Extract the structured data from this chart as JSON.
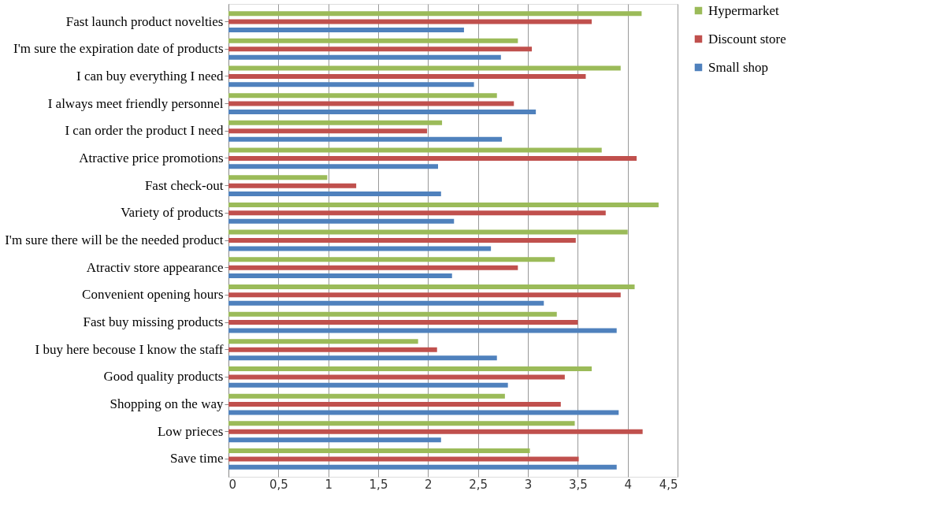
{
  "chart_data": {
    "type": "bar",
    "orientation": "horizontal",
    "categories": [
      "Fast launch product novelties",
      "I'm sure the expiration date of products",
      "I can buy everything I need",
      "I always meet friendly personnel",
      "I can order the product I need",
      "Atractive price promotions",
      "Fast check-out",
      "Variety of products",
      "I'm sure there will be the needed product",
      "Atractiv store appearance",
      "Convenient opening hours",
      "Fast buy missing products",
      "I buy here becouse I know the staff",
      "Good quality products",
      "Shopping on the way",
      "Low prieces",
      "Save time"
    ],
    "series": [
      {
        "name": "Hypermarket",
        "color": "#9bbb59",
        "values": [
          4.14,
          2.9,
          3.93,
          2.69,
          2.14,
          3.74,
          0.99,
          4.31,
          4.0,
          3.27,
          4.07,
          3.29,
          1.9,
          3.64,
          2.77,
          3.47,
          3.02
        ]
      },
      {
        "name": "Discount store",
        "color": "#c0504d",
        "values": [
          3.64,
          3.04,
          3.58,
          2.86,
          1.99,
          4.09,
          1.28,
          3.78,
          3.48,
          2.9,
          3.93,
          3.5,
          2.09,
          3.37,
          3.33,
          4.15,
          3.51
        ]
      },
      {
        "name": "Small shop",
        "color": "#4f81bd",
        "values": [
          2.36,
          2.73,
          2.46,
          3.08,
          2.74,
          2.1,
          2.13,
          2.26,
          2.63,
          2.24,
          3.16,
          3.89,
          2.69,
          2.8,
          3.91,
          2.13,
          3.89
        ]
      }
    ],
    "xlim": [
      0,
      4.5
    ],
    "xticks": [
      0,
      {
        "value": 0.5,
        "label": "0,5"
      },
      1,
      {
        "value": 1.5,
        "label": "1,5"
      },
      2,
      {
        "value": 2.5,
        "label": "2,5"
      },
      3,
      {
        "value": 3.5,
        "label": "3,5"
      },
      4,
      {
        "value": 4.5,
        "label": "4,5"
      }
    ],
    "grid": "x",
    "legend": "right"
  }
}
